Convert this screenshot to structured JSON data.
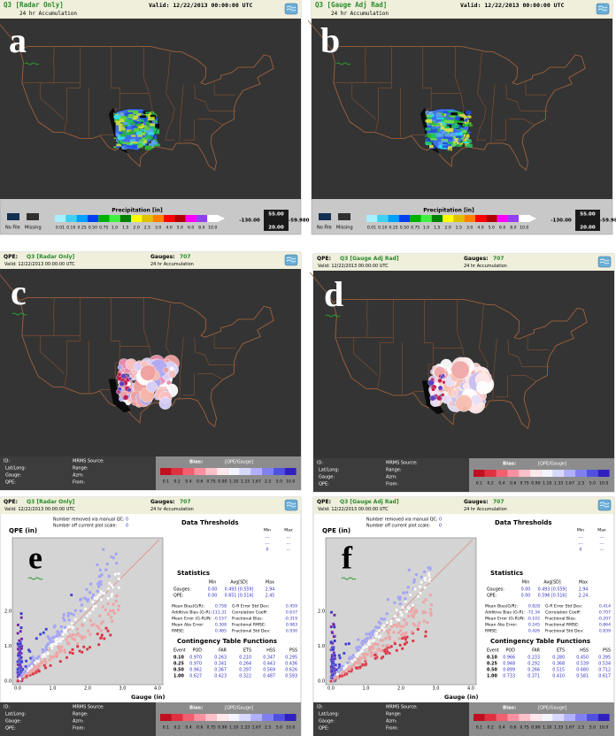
{
  "map_panels": [
    {
      "letter": "a",
      "title": "Q3 [Radar Only]",
      "valid": "Valid: 12/22/2013 00:00:00 UTC",
      "accumulation": "24 hr Accumulation",
      "legend_title": "Precipitation [in]",
      "no_file": "No File",
      "missing": "Missing",
      "scale": [
        "0.01",
        "0.10",
        "0.25",
        "0.50",
        "0.75",
        "1.0",
        "1.5",
        "2.0",
        "2.5",
        "3.0",
        "4.0",
        "5.0",
        "6.0",
        "8.0",
        "10.0"
      ],
      "lon_min": "-130.00",
      "lat_max": "55.00",
      "lat_min": "20.00",
      "lon_max": "-59.980"
    },
    {
      "letter": "b",
      "title": "Q3 [Gauge Adj Rad]",
      "valid": "Valid: 12/22/2013 00:00:00 UTC",
      "accumulation": "24 hr Accumulation",
      "legend_title": "Precipitation [in]",
      "no_file": "No File",
      "missing": "Missing",
      "scale": [
        "0.01",
        "0.10",
        "0.25",
        "0.50",
        "0.75",
        "1.0",
        "1.5",
        "2.0",
        "2.5",
        "3.0",
        "4.0",
        "5.0",
        "6.0",
        "8.0",
        "10.0"
      ],
      "lon_min": "-130.00",
      "lat_max": "55.00",
      "lat_min": "20.00",
      "lon_max": "-59.980"
    }
  ],
  "gauge_panels": [
    {
      "letter": "c",
      "qpe_label": "QPE:",
      "title": "Q3 [Radar Only]",
      "gauges_label": "Gauges:",
      "gauges": "707",
      "valid": "Valid: 12/22/2013 00:00:00 UTC",
      "accumulation": "24 hr Accumulation",
      "info": {
        "id": "ID:",
        "source": "MRMS Source:",
        "latlong": "Lat/Long:",
        "range": "Range:",
        "gauge": "Gauge:",
        "azm": "Azm:",
        "qpe": "QPE:",
        "from": "From:"
      },
      "bias_label": "Bias:",
      "bias_unit": "[QPE/Gauge]",
      "bias_scale": [
        "0.1",
        "0.2",
        "0.4",
        "0.6",
        "0.75",
        "0.90",
        "1.10",
        "1.33",
        "1.67",
        "2.5",
        "5.0",
        "10.0"
      ]
    },
    {
      "letter": "d",
      "qpe_label": "QPE:",
      "title": "Q3 [Gauge Adj Rad]",
      "gauges_label": "Gauges:",
      "gauges": "707",
      "valid": "Valid: 12/22/2013 00:00:00 UTC",
      "accumulation": "24 hr Accumulation",
      "info": {
        "id": "ID:",
        "source": "MRMS Source:",
        "latlong": "Lat/Long:",
        "range": "Range:",
        "gauge": "Gauge:",
        "azm": "Azm:",
        "qpe": "QPE:",
        "from": "From:"
      },
      "bias_label": "Bias:",
      "bias_unit": "[QPE/Gauge]",
      "bias_scale": [
        "0.1",
        "0.2",
        "0.4",
        "0.6",
        "0.75",
        "0.90",
        "1.10",
        "1.33",
        "1.67",
        "2.5",
        "5.0",
        "10.0"
      ]
    }
  ],
  "scatter_panels": [
    {
      "letter": "e",
      "qpe_label": "QPE:",
      "title": "Q3 [Radar Only]",
      "gauges_label": "Gauges:",
      "gauges": "707",
      "valid": "Valid: 12/22/2013 00:00:00 UTC",
      "accumulation": "24 hr Accumulation",
      "removed_label": "Number removed via manual QC:",
      "removed": "0",
      "offscale_label": "Number off current plot scale:",
      "offscale": "0",
      "y_axis": "QPE (in)",
      "x_axis": "Gauge (in)",
      "y_ticks": [
        "0.0",
        "1.0",
        "2.0"
      ],
      "x_ticks": [
        "0.0",
        "1.0",
        "2.0",
        "3.0",
        "4.0"
      ],
      "thresholds_title": "Data Thresholds",
      "thr_min": "Min",
      "thr_max": "Max",
      "thr_rows": [
        [
          "---",
          "---"
        ],
        [
          "---",
          "---"
        ],
        [
          "0",
          "---"
        ]
      ],
      "statistics_title": "Statistics",
      "stat_header": [
        "Min",
        "Avg[SD]",
        "Max"
      ],
      "stat_rows": [
        [
          "Gauges:",
          "0.00",
          "0.493 [0.559]",
          "2.94"
        ],
        [
          "QPE:",
          "0.00",
          "0.651 [0.514]",
          "2.45"
        ]
      ],
      "metrics_left": [
        [
          "Mean Bias(G/R):",
          "0.758"
        ],
        [
          "Additive Bias (G-R):",
          "-111.31"
        ],
        [
          "Mean Error (G-R)/N:",
          "-0.157"
        ],
        [
          "Mean Abs Error:",
          "0.308"
        ],
        [
          "RMSE:",
          "0.485"
        ]
      ],
      "metrics_right": [
        [
          "G-R Error Std Dev:",
          "0.459"
        ],
        [
          "Correlation Coeff:",
          "0.637"
        ],
        [
          "Fractional Bias:",
          "-0.319"
        ],
        [
          "Fractional RMSE:",
          "0.983"
        ],
        [
          "Fractional Std Dev:",
          "0.930"
        ]
      ],
      "ct_title": "Contingency Table Functions",
      "ct_header": [
        "Event",
        "POD",
        "FAR",
        "ETS",
        "HSS",
        "PSS"
      ],
      "ct_rows": [
        [
          "0.10",
          "0.970",
          "0.263",
          "0.210",
          "0.347",
          "0.295"
        ],
        [
          "0.25",
          "0.970",
          "0.341",
          "0.264",
          "0.443",
          "0.436"
        ],
        [
          "0.50",
          "0.942",
          "0.367",
          "0.397",
          "0.569",
          "0.626"
        ],
        [
          "1.00",
          "0.627",
          "0.423",
          "0.322",
          "0.487",
          "0.593"
        ]
      ],
      "info": {
        "id": "ID:",
        "source": "MRMS Source:",
        "latlong": "Lat/Long:",
        "range": "Range:",
        "gauge": "Gauge:",
        "azm": "Azm:",
        "qpe": "QPE:",
        "from": "From:"
      },
      "bias_label": "Bias:",
      "bias_unit": "[QPE/Gauge]",
      "bias_scale": [
        "0.1",
        "0.2",
        "0.4",
        "0.6",
        "0.75",
        "0.90",
        "1.10",
        "1.33",
        "1.67",
        "2.5",
        "5.0",
        "10.0"
      ]
    },
    {
      "letter": "f",
      "qpe_label": "QPE:",
      "title": "Q3 [Gauge Adj Rad]",
      "gauges_label": "Gauges:",
      "gauges": "707",
      "valid": "Valid: 12/22/2013 00:00:00 UTC",
      "accumulation": "24 hr Accumulation",
      "removed_label": "Number removed via manual QC:",
      "removed": "0",
      "offscale_label": "Number off current plot scale:",
      "offscale": "0",
      "y_axis": "QPE (in)",
      "x_axis": "Gauge (in)",
      "y_ticks": [
        "0.0",
        "1.0",
        "2.0"
      ],
      "x_ticks": [
        "0.0",
        "1.0",
        "2.0",
        "3.0",
        "4.0"
      ],
      "thresholds_title": "Data Thresholds",
      "thr_min": "Min",
      "thr_max": "Max",
      "thr_rows": [
        [
          "---",
          "---"
        ],
        [
          "---",
          "---"
        ],
        [
          "0",
          "---"
        ]
      ],
      "statistics_title": "Statistics",
      "stat_header": [
        "Min",
        "Avg[SD]",
        "Max"
      ],
      "stat_rows": [
        [
          "Gauges:",
          "0.00",
          "0.493 [0.559]",
          "2.94"
        ],
        [
          "QPE:",
          "0.00",
          "0.596 [0.516]",
          "2.24"
        ]
      ],
      "metrics_left": [
        [
          "Mean Bias(G/R):",
          "0.828"
        ],
        [
          "Additive Bias (G-R):",
          "-72.34"
        ],
        [
          "Mean Error (G-R)/N:",
          "-0.102"
        ],
        [
          "Mean Abs Error:",
          "0.245"
        ],
        [
          "RMSE:",
          "0.426"
        ]
      ],
      "metrics_right": [
        [
          "G-R Error Std Dev:",
          "0.414"
        ],
        [
          "Correlation Coeff:",
          "0.707"
        ],
        [
          "Fractional Bias:",
          "-0.207"
        ],
        [
          "Fractional RMSE:",
          "0.864"
        ],
        [
          "Fractional Std Dev:",
          "0.839"
        ]
      ],
      "ct_title": "Contingency Table Functions",
      "ct_header": [
        "Event",
        "POD",
        "FAR",
        "ETS",
        "HSS",
        "PSS"
      ],
      "ct_rows": [
        [
          "0.10",
          "0.966",
          "0.233",
          "0.280",
          "0.450",
          "0.395"
        ],
        [
          "0.25",
          "0.948",
          "0.292",
          "0.368",
          "0.539",
          "0.534"
        ],
        [
          "0.50",
          "0.899",
          "0.266",
          "0.515",
          "0.680",
          "0.712"
        ],
        [
          "1.00",
          "0.733",
          "0.371",
          "0.410",
          "0.581",
          "0.617"
        ]
      ],
      "info": {
        "id": "ID:",
        "source": "MRMS Source:",
        "latlong": "Lat/Long:",
        "range": "Range:",
        "gauge": "Gauge:",
        "azm": "Azm:",
        "qpe": "QPE:",
        "from": "From:"
      },
      "bias_label": "Bias:",
      "bias_unit": "[QPE/Gauge]",
      "bias_scale": [
        "0.1",
        "0.2",
        "0.4",
        "0.6",
        "0.75",
        "0.90",
        "1.10",
        "1.33",
        "1.67",
        "2.5",
        "5.0",
        "10.0"
      ]
    }
  ]
}
